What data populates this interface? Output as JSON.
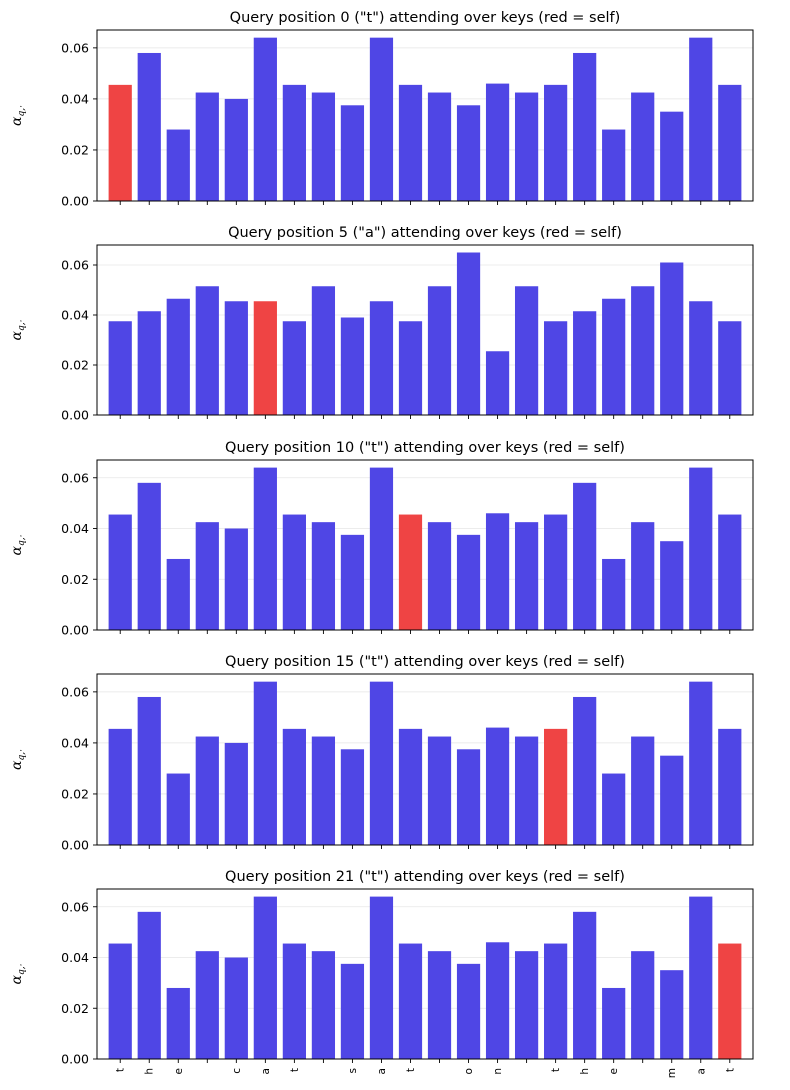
{
  "chart_data": [
    {
      "type": "bar",
      "title": "Query position 0 (\"t\") attending over keys (red = self)",
      "ylabel": "α_{q,·}",
      "ylim": [
        0,
        0.067
      ],
      "yticks": [
        "0.00",
        "0.02",
        "0.04",
        "0.06"
      ],
      "self_index": 0,
      "show_xtick_labels": false,
      "categories": [
        "t",
        "h",
        "e",
        " ",
        "c",
        "a",
        "t",
        " ",
        "s",
        "a",
        "t",
        " ",
        "o",
        "n",
        " ",
        "t",
        "h",
        "e",
        " ",
        "m",
        "a",
        "t"
      ],
      "values": [
        0.0455,
        0.058,
        0.028,
        0.0425,
        0.04,
        0.064,
        0.0455,
        0.0425,
        0.0375,
        0.064,
        0.0455,
        0.0425,
        0.0375,
        0.046,
        0.0425,
        0.0455,
        0.058,
        0.028,
        0.0425,
        0.035,
        0.064,
        0.0455
      ],
      "grid": "y",
      "colors": {
        "bar": "#4f46e5",
        "self": "#ef4444"
      }
    },
    {
      "type": "bar",
      "title": "Query position 5 (\"a\") attending over keys (red = self)",
      "ylabel": "α_{q,·}",
      "ylim": [
        0,
        0.068
      ],
      "yticks": [
        "0.00",
        "0.02",
        "0.04",
        "0.06"
      ],
      "self_index": 5,
      "show_xtick_labels": false,
      "categories": [
        "t",
        "h",
        "e",
        " ",
        "c",
        "a",
        "t",
        " ",
        "s",
        "a",
        "t",
        " ",
        "o",
        "n",
        " ",
        "t",
        "h",
        "e",
        " ",
        "m",
        "a",
        "t"
      ],
      "values": [
        0.0375,
        0.0415,
        0.0465,
        0.0515,
        0.0455,
        0.0455,
        0.0375,
        0.0515,
        0.039,
        0.0455,
        0.0375,
        0.0515,
        0.065,
        0.0255,
        0.0515,
        0.0375,
        0.0415,
        0.0465,
        0.0515,
        0.061,
        0.0455,
        0.0375
      ],
      "grid": "y",
      "colors": {
        "bar": "#4f46e5",
        "self": "#ef4444"
      }
    },
    {
      "type": "bar",
      "title": "Query position 10 (\"t\") attending over keys (red = self)",
      "ylabel": "α_{q,·}",
      "ylim": [
        0,
        0.067
      ],
      "yticks": [
        "0.00",
        "0.02",
        "0.04",
        "0.06"
      ],
      "self_index": 10,
      "show_xtick_labels": false,
      "categories": [
        "t",
        "h",
        "e",
        " ",
        "c",
        "a",
        "t",
        " ",
        "s",
        "a",
        "t",
        " ",
        "o",
        "n",
        " ",
        "t",
        "h",
        "e",
        " ",
        "m",
        "a",
        "t"
      ],
      "values": [
        0.0455,
        0.058,
        0.028,
        0.0425,
        0.04,
        0.064,
        0.0455,
        0.0425,
        0.0375,
        0.064,
        0.0455,
        0.0425,
        0.0375,
        0.046,
        0.0425,
        0.0455,
        0.058,
        0.028,
        0.0425,
        0.035,
        0.064,
        0.0455
      ],
      "grid": "y",
      "colors": {
        "bar": "#4f46e5",
        "self": "#ef4444"
      }
    },
    {
      "type": "bar",
      "title": "Query position 15 (\"t\") attending over keys (red = self)",
      "ylabel": "α_{q,·}",
      "ylim": [
        0,
        0.067
      ],
      "yticks": [
        "0.00",
        "0.02",
        "0.04",
        "0.06"
      ],
      "self_index": 15,
      "show_xtick_labels": false,
      "categories": [
        "t",
        "h",
        "e",
        " ",
        "c",
        "a",
        "t",
        " ",
        "s",
        "a",
        "t",
        " ",
        "o",
        "n",
        " ",
        "t",
        "h",
        "e",
        " ",
        "m",
        "a",
        "t"
      ],
      "values": [
        0.0455,
        0.058,
        0.028,
        0.0425,
        0.04,
        0.064,
        0.0455,
        0.0425,
        0.0375,
        0.064,
        0.0455,
        0.0425,
        0.0375,
        0.046,
        0.0425,
        0.0455,
        0.058,
        0.028,
        0.0425,
        0.035,
        0.064,
        0.0455
      ],
      "grid": "y",
      "colors": {
        "bar": "#4f46e5",
        "self": "#ef4444"
      }
    },
    {
      "type": "bar",
      "title": "Query position 21 (\"t\") attending over keys (red = self)",
      "ylabel": "α_{q,·}",
      "ylim": [
        0,
        0.067
      ],
      "yticks": [
        "0.00",
        "0.02",
        "0.04",
        "0.06"
      ],
      "self_index": 21,
      "show_xtick_labels": true,
      "categories": [
        "t",
        "h",
        "e",
        " ",
        "c",
        "a",
        "t",
        " ",
        "s",
        "a",
        "t",
        " ",
        "o",
        "n",
        " ",
        "t",
        "h",
        "e",
        " ",
        "m",
        "a",
        "t"
      ],
      "values": [
        0.0455,
        0.058,
        0.028,
        0.0425,
        0.04,
        0.064,
        0.0455,
        0.0425,
        0.0375,
        0.064,
        0.0455,
        0.0425,
        0.0375,
        0.046,
        0.0425,
        0.0455,
        0.058,
        0.028,
        0.0425,
        0.035,
        0.064,
        0.0455
      ],
      "grid": "y",
      "colors": {
        "bar": "#4f46e5",
        "self": "#ef4444"
      }
    }
  ]
}
